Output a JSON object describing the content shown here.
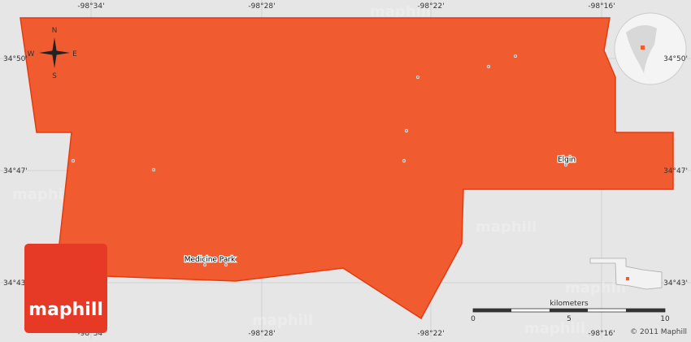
{
  "map": {
    "top_labels": [
      "-98°34'",
      "-98°28'",
      "-98°22'",
      "-98°16'"
    ],
    "bottom_labels": [
      "-98°34'",
      "-98°28'",
      "-98°22'",
      "-98°16'"
    ],
    "left_labels": [
      "34°50'",
      "34°47'",
      "34°43'"
    ],
    "right_labels": [
      "34°50'",
      "34°47'",
      "34°43'"
    ],
    "places": [
      "Elgin",
      "Medicine Park"
    ],
    "compass": {
      "n": "N",
      "e": "E",
      "s": "S",
      "w": "W"
    },
    "scale": {
      "title": "kilometers",
      "ticks": [
        0,
        5,
        10
      ]
    },
    "logo": "maphill",
    "copyright": "© 2011 Maphill",
    "watermark": "maphill"
  }
}
